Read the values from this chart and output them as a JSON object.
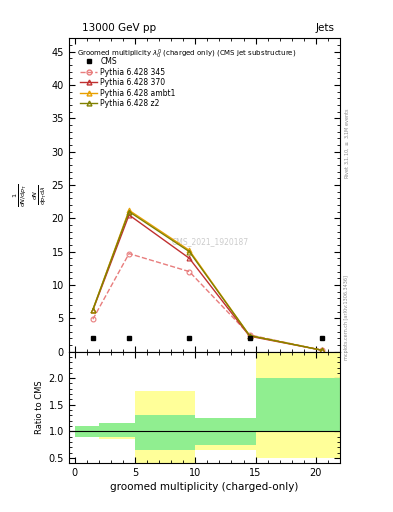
{
  "title_top": "13000 GeV pp",
  "title_right": "Jets",
  "plot_title": "Groomed multiplicity $\\lambda_0^0$ (charged only) (CMS jet substructure)",
  "xlabel": "groomed multiplicity (charged-only)",
  "ylabel_main": "$\\frac{1}{\\mathrm{d}N / \\mathrm{d}p_\\mathrm{T}} \\frac{\\mathrm{d}N}{\\mathrm{d}\\lambda}$",
  "ylabel_ratio": "Ratio to CMS",
  "watermark": "CMS_2021_1920187",
  "right_label": "mcplots.cern.ch [arXiv:1306.3436]",
  "right_label2": "Rivet 3.1.10, $\\geq$ 3.1M events",
  "cms_x_centers": [
    1.5,
    4.5,
    9.5,
    14.5,
    20.5
  ],
  "cms_y": [
    2.0,
    2.0,
    2.0,
    2.0,
    2.0
  ],
  "p345_x": [
    1.5,
    4.5,
    9.5,
    14.5,
    20.5
  ],
  "p345_y": [
    4.85,
    14.7,
    12.0,
    2.5,
    0.2
  ],
  "p370_x": [
    1.5,
    4.5,
    9.5,
    14.5,
    20.5
  ],
  "p370_y": [
    6.2,
    20.5,
    14.0,
    2.3,
    0.2
  ],
  "pambt1_x": [
    1.5,
    4.5,
    9.5,
    14.5,
    20.5
  ],
  "pambt1_y": [
    6.3,
    21.2,
    15.2,
    2.4,
    0.2
  ],
  "pz2_x": [
    1.5,
    4.5,
    9.5,
    14.5,
    20.5
  ],
  "pz2_y": [
    6.3,
    21.0,
    15.0,
    2.4,
    0.2
  ],
  "ylim_main": [
    0,
    47
  ],
  "xlim": [
    -0.5,
    22
  ],
  "yticks_main": [
    0,
    5,
    10,
    15,
    20,
    25,
    30,
    35,
    40,
    45
  ],
  "xticks": [
    0,
    5,
    10,
    15,
    20
  ],
  "green_x": [
    0,
    2,
    2,
    5,
    5,
    10,
    10,
    15,
    15,
    20,
    20,
    22
  ],
  "green_upper": [
    1.1,
    1.1,
    1.15,
    1.15,
    1.3,
    1.3,
    1.25,
    1.25,
    2.0,
    2.0,
    2.0,
    2.0
  ],
  "green_lower": [
    0.9,
    0.9,
    0.9,
    0.9,
    0.65,
    0.65,
    0.75,
    0.75,
    1.0,
    1.0,
    1.0,
    1.0
  ],
  "yellow_x": [
    0,
    2,
    2,
    5,
    5,
    10,
    10,
    15,
    15,
    20,
    20,
    22
  ],
  "yellow_upper": [
    1.05,
    1.05,
    1.15,
    1.15,
    1.75,
    1.75,
    1.25,
    1.25,
    2.5,
    2.5,
    2.5,
    2.5
  ],
  "yellow_lower": [
    0.95,
    0.95,
    0.85,
    0.85,
    0.4,
    0.4,
    0.65,
    0.65,
    0.5,
    0.5,
    0.5,
    0.5
  ],
  "ylim_ratio": [
    0.4,
    2.5
  ],
  "yticks_ratio": [
    0.5,
    1.0,
    1.5,
    2.0
  ],
  "color_345": "#e87d7d",
  "color_370": "#c03030",
  "color_ambt1": "#e8a000",
  "color_z2": "#808000",
  "cms_color": "black",
  "bg_color": "white",
  "color_green": "#90ee90",
  "color_yellow": "#ffff99"
}
